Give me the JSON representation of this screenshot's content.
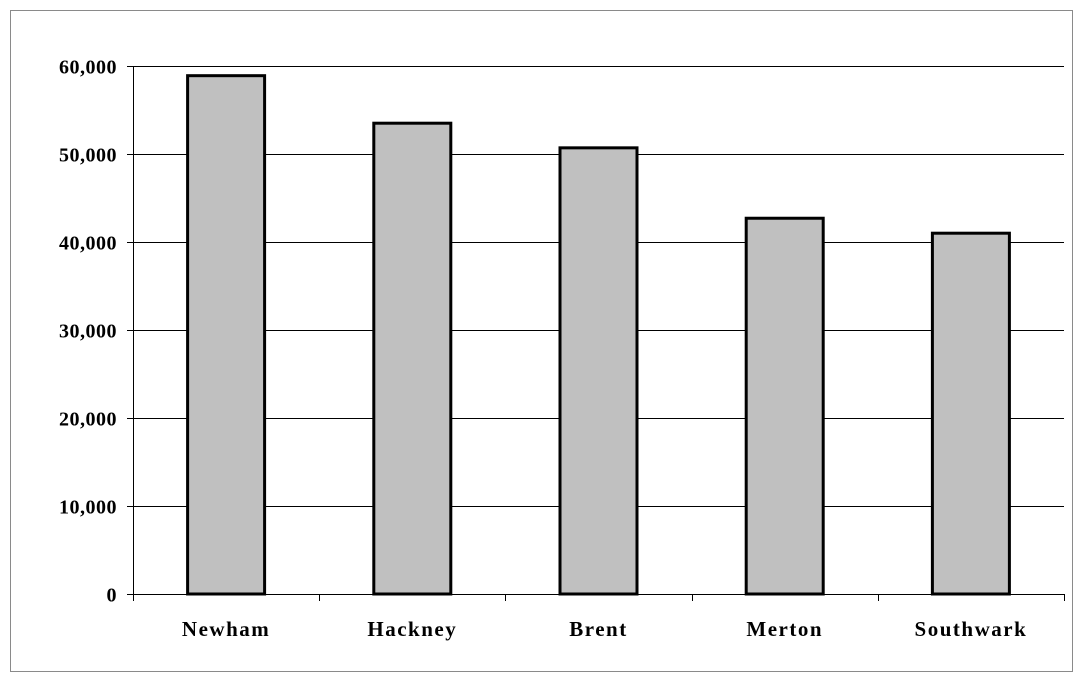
{
  "chart_data": {
    "type": "bar",
    "title": "",
    "xlabel": "",
    "ylabel": "",
    "categories": [
      "Newham",
      "Hackney",
      "Brent",
      "Merton",
      "Southwark"
    ],
    "values": [
      58900,
      53500,
      50700,
      42700,
      41000
    ],
    "ylim": [
      0,
      60000
    ],
    "yticks": [
      0,
      10000,
      20000,
      30000,
      40000,
      50000,
      60000
    ],
    "ytick_labels": [
      "0",
      "10,000",
      "20,000",
      "30,000",
      "40,000",
      "50,000",
      "60,000"
    ],
    "grid": "horizontal",
    "legend": "none",
    "colors": {
      "bar_fill": "#c0c0c0",
      "bar_stroke": "#000000",
      "grid": "#000000",
      "frame": "#8a8a8a"
    }
  }
}
